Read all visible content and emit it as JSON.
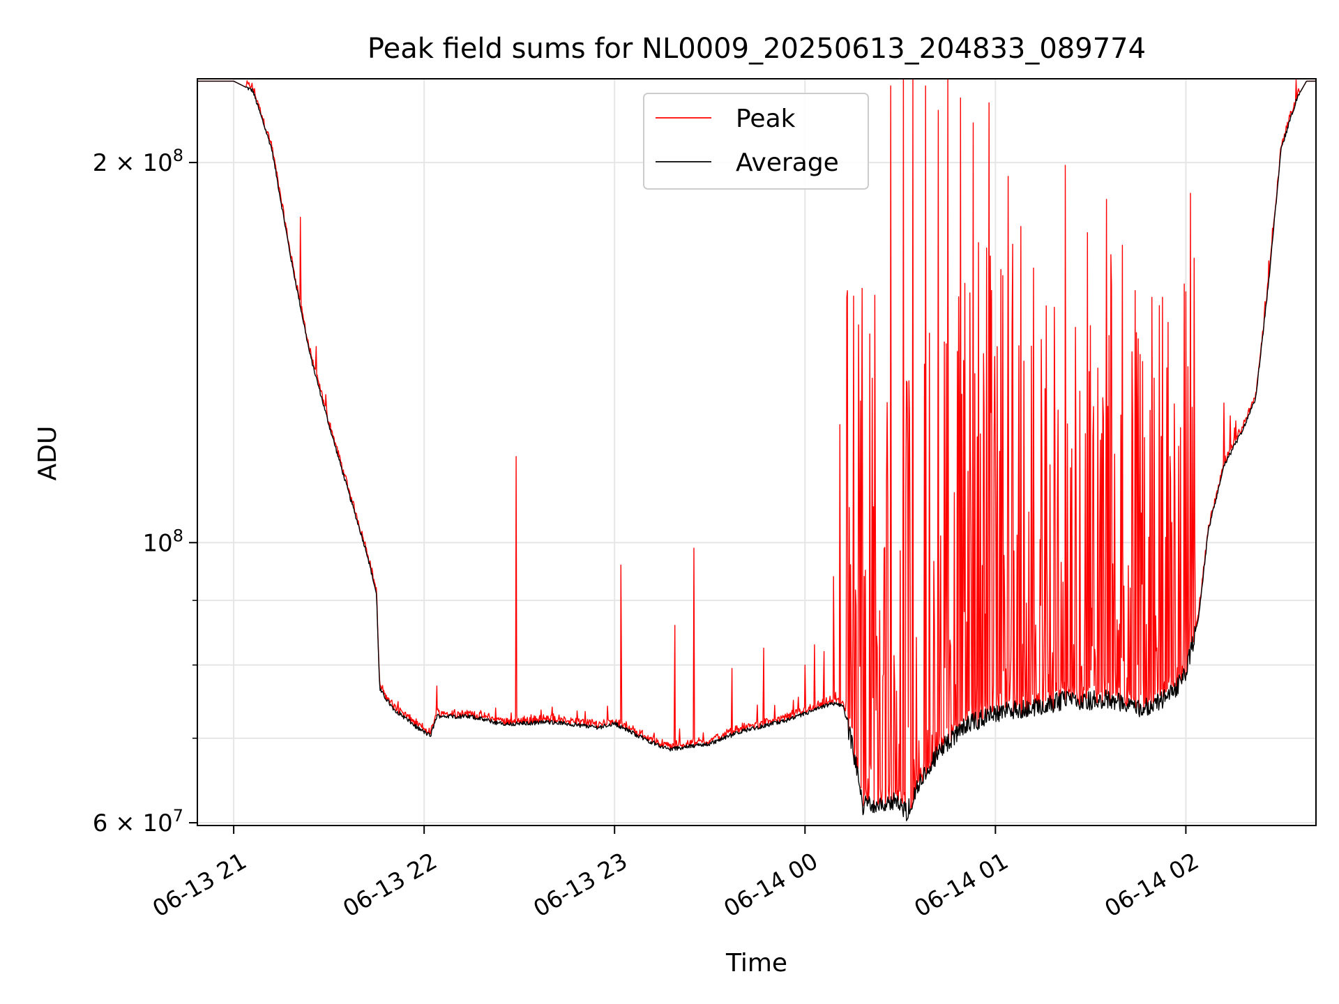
{
  "chart_data": {
    "type": "line",
    "title": "Peak field sums for NL0009_20250613_204833_089774",
    "xlabel": "Time",
    "ylabel": "ADU",
    "yscale": "log",
    "ylim": [
      59700000,
      233000000
    ],
    "xlim": [
      "2025-06-13T20:48:33",
      "2025-06-14T02:41:00"
    ],
    "x_ticks": [
      {
        "t": "2025-06-13T21:00:00",
        "label": "06-13 21"
      },
      {
        "t": "2025-06-13T22:00:00",
        "label": "06-13 22"
      },
      {
        "t": "2025-06-13T23:00:00",
        "label": "06-13 23"
      },
      {
        "t": "2025-06-14T00:00:00",
        "label": "06-14 00"
      },
      {
        "t": "2025-06-14T01:00:00",
        "label": "06-14 01"
      },
      {
        "t": "2025-06-14T02:00:00",
        "label": "06-14 02"
      }
    ],
    "y_major_ticks": [
      {
        "value": 60000000,
        "base": "6 × 10",
        "exp": "7"
      },
      {
        "value": 100000000,
        "base": "10",
        "exp": "8"
      },
      {
        "value": 200000000,
        "base": "2 × 10",
        "exp": "8"
      }
    ],
    "y_minor_gridlines": [
      70000000,
      80000000,
      90000000
    ],
    "grid": true,
    "legend_position": "top-center",
    "series": [
      {
        "name": "Average",
        "color": "#000000",
        "baseline": [
          [
            "2025-06-13T20:48:33",
            232000000
          ],
          [
            "2025-06-13T21:00:00",
            232000000
          ],
          [
            "2025-06-13T21:06:00",
            228000000
          ],
          [
            "2025-06-13T21:12:00",
            205000000
          ],
          [
            "2025-06-13T21:18:00",
            168000000
          ],
          [
            "2025-06-13T21:24:00",
            141000000
          ],
          [
            "2025-06-13T21:30:00",
            124000000
          ],
          [
            "2025-06-13T21:36:00",
            110000000
          ],
          [
            "2025-06-13T21:42:00",
            98000000
          ],
          [
            "2025-06-13T21:45:00",
            91000000
          ],
          [
            "2025-06-13T21:46:00",
            76500000
          ],
          [
            "2025-06-13T21:50:00",
            74000000
          ],
          [
            "2025-06-13T21:58:00",
            71300000
          ],
          [
            "2025-06-13T22:02:00",
            70300000
          ],
          [
            "2025-06-13T22:04:00",
            72900000
          ],
          [
            "2025-06-13T22:15:00",
            72800000
          ],
          [
            "2025-06-13T22:25:00",
            71800000
          ],
          [
            "2025-06-13T22:40:00",
            72100000
          ],
          [
            "2025-06-13T22:55:00",
            71400000
          ],
          [
            "2025-06-13T23:00:00",
            71900000
          ],
          [
            "2025-06-13T23:10:00",
            69800000
          ],
          [
            "2025-06-13T23:17:00",
            68600000
          ],
          [
            "2025-06-13T23:30:00",
            69300000
          ],
          [
            "2025-06-13T23:40:00",
            70900000
          ],
          [
            "2025-06-13T23:55:00",
            72400000
          ],
          [
            "2025-06-14T00:08:00",
            74500000
          ],
          [
            "2025-06-14T00:12:00",
            74400000
          ],
          [
            "2025-06-14T00:16:00",
            67000000
          ],
          [
            "2025-06-14T00:18:00",
            61800000
          ],
          [
            "2025-06-14T00:20:00",
            62300000
          ],
          [
            "2025-06-14T00:25:00",
            62000000
          ],
          [
            "2025-06-14T00:28:00",
            62400000
          ],
          [
            "2025-06-14T00:32:00",
            61200000
          ],
          [
            "2025-06-14T00:36:00",
            64500000
          ],
          [
            "2025-06-14T00:42:00",
            68200000
          ],
          [
            "2025-06-14T00:50:00",
            71500000
          ],
          [
            "2025-06-14T01:00:00",
            73300000
          ],
          [
            "2025-06-14T01:10:00",
            74000000
          ],
          [
            "2025-06-14T01:20:00",
            74800000
          ],
          [
            "2025-06-14T01:24:00",
            75600000
          ],
          [
            "2025-06-14T01:25:00",
            74600000
          ],
          [
            "2025-06-14T01:35:00",
            75300000
          ],
          [
            "2025-06-14T01:45:00",
            74000000
          ],
          [
            "2025-06-14T01:50:00",
            74400000
          ],
          [
            "2025-06-14T01:56:00",
            76000000
          ],
          [
            "2025-06-14T02:00:00",
            79000000
          ],
          [
            "2025-06-14T02:04:00",
            87000000
          ],
          [
            "2025-06-14T02:07:00",
            102000000
          ],
          [
            "2025-06-14T02:12:00",
            115000000
          ],
          [
            "2025-06-14T02:18:00",
            123000000
          ],
          [
            "2025-06-14T02:22:00",
            130000000
          ],
          [
            "2025-06-14T02:26:00",
            160000000
          ],
          [
            "2025-06-14T02:30:00",
            205000000
          ],
          [
            "2025-06-14T02:35:00",
            225000000
          ],
          [
            "2025-06-14T02:38:00",
            232000000
          ],
          [
            "2025-06-14T02:41:00",
            232000000
          ]
        ]
      },
      {
        "name": "Peak",
        "color": "#ff0000",
        "note_baseline": "follows Average baseline with small positive offset plus spikes",
        "spikes": [
          [
            "2025-06-13T21:21:00",
            181000000
          ],
          [
            "2025-06-13T21:26:00",
            143000000
          ],
          [
            "2025-06-13T21:27:00",
            133000000
          ],
          [
            "2025-06-13T21:29:00",
            131000000
          ],
          [
            "2025-06-13T22:04:00",
            77000000
          ],
          [
            "2025-06-13T22:29:00",
            117000000
          ],
          [
            "2025-06-13T23:02:00",
            96000000
          ],
          [
            "2025-06-13T23:19:00",
            86000000
          ],
          [
            "2025-06-13T23:25:00",
            99000000
          ],
          [
            "2025-06-13T23:37:00",
            79500000
          ],
          [
            "2025-06-13T23:47:00",
            82500000
          ],
          [
            "2025-06-13T24:00:00",
            80000000
          ],
          [
            "2025-06-14T00:03:00",
            83000000
          ],
          [
            "2025-06-14T00:06:00",
            82000000
          ],
          [
            "2025-06-14T00:09:00",
            94000000
          ],
          [
            "2025-06-14T00:11:00",
            124000000
          ],
          [
            "2025-06-14T00:18:00",
            159000000
          ],
          [
            "2025-06-14T00:22:00",
            157000000
          ],
          [
            "2025-06-14T00:27:00",
            230000000
          ],
          [
            "2025-06-14T00:31:00",
            233000000
          ],
          [
            "2025-06-14T00:34:00",
            233000000
          ],
          [
            "2025-06-14T00:38:00",
            230000000
          ],
          [
            "2025-06-14T00:42:00",
            220000000
          ],
          [
            "2025-06-14T00:45:00",
            233000000
          ],
          [
            "2025-06-14T00:49:00",
            225000000
          ],
          [
            "2025-06-14T00:53:00",
            215000000
          ],
          [
            "2025-06-14T00:58:00",
            223000000
          ],
          [
            "2025-06-14T01:04:00",
            195000000
          ],
          [
            "2025-06-14T01:08:00",
            178000000
          ],
          [
            "2025-06-14T01:12:00",
            165000000
          ],
          [
            "2025-06-14T01:16:00",
            154000000
          ],
          [
            "2025-06-14T01:22:00",
            199000000
          ],
          [
            "2025-06-14T01:29:00",
            176000000
          ],
          [
            "2025-06-14T01:35:00",
            187000000
          ],
          [
            "2025-06-14T01:40:00",
            172000000
          ],
          [
            "2025-06-14T01:45:00",
            145000000
          ],
          [
            "2025-06-14T01:50:00",
            135000000
          ],
          [
            "2025-06-14T01:55:00",
            117000000
          ],
          [
            "2025-06-14T02:00:00",
            158000000
          ],
          [
            "2025-06-14T02:02:00",
            128000000
          ],
          [
            "2025-06-14T02:12:00",
            129000000
          ],
          [
            "2025-06-14T02:14:00",
            126000000
          ]
        ]
      }
    ],
    "legend": [
      {
        "name": "Peak",
        "color": "#ff0000"
      },
      {
        "name": "Average",
        "color": "#000000"
      }
    ]
  }
}
